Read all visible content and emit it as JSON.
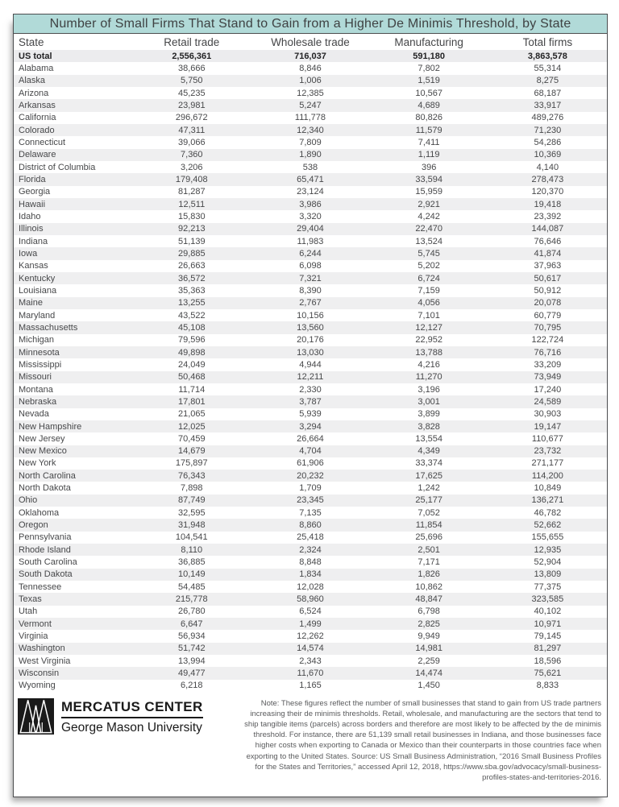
{
  "title": "Number of Small Firms That Stand to Gain from a Higher De Minimis Threshold, by State",
  "chart_data": {
    "type": "table",
    "title": "Number of Small Firms That Stand to Gain from a Higher De Minimis Threshold, by State",
    "columns": [
      "State",
      "Retail trade",
      "Wholesale trade",
      "Manufacturing",
      "Total firms"
    ],
    "rows": [
      [
        "US total",
        "2,556,361",
        "716,037",
        "591,180",
        "3,863,578"
      ],
      [
        "Alabama",
        "38,666",
        "8,846",
        "7,802",
        "55,314"
      ],
      [
        "Alaska",
        "5,750",
        "1,006",
        "1,519",
        "8,275"
      ],
      [
        "Arizona",
        "45,235",
        "12,385",
        "10,567",
        "68,187"
      ],
      [
        "Arkansas",
        "23,981",
        "5,247",
        "4,689",
        "33,917"
      ],
      [
        "California",
        "296,672",
        "111,778",
        "80,826",
        "489,276"
      ],
      [
        "Colorado",
        "47,311",
        "12,340",
        "11,579",
        "71,230"
      ],
      [
        "Connecticut",
        "39,066",
        "7,809",
        "7,411",
        "54,286"
      ],
      [
        "Delaware",
        "7,360",
        "1,890",
        "1,119",
        "10,369"
      ],
      [
        "District of Columbia",
        "3,206",
        "538",
        "396",
        "4,140"
      ],
      [
        "Florida",
        "179,408",
        "65,471",
        "33,594",
        "278,473"
      ],
      [
        "Georgia",
        "81,287",
        "23,124",
        "15,959",
        "120,370"
      ],
      [
        "Hawaii",
        "12,511",
        "3,986",
        "2,921",
        "19,418"
      ],
      [
        "Idaho",
        "15,830",
        "3,320",
        "4,242",
        "23,392"
      ],
      [
        "Illinois",
        "92,213",
        "29,404",
        "22,470",
        "144,087"
      ],
      [
        "Indiana",
        "51,139",
        "11,983",
        "13,524",
        "76,646"
      ],
      [
        "Iowa",
        "29,885",
        "6,244",
        "5,745",
        "41,874"
      ],
      [
        "Kansas",
        "26,663",
        "6,098",
        "5,202",
        "37,963"
      ],
      [
        "Kentucky",
        "36,572",
        "7,321",
        "6,724",
        "50,617"
      ],
      [
        "Louisiana",
        "35,363",
        "8,390",
        "7,159",
        "50,912"
      ],
      [
        "Maine",
        "13,255",
        "2,767",
        "4,056",
        "20,078"
      ],
      [
        "Maryland",
        "43,522",
        "10,156",
        "7,101",
        "60,779"
      ],
      [
        "Massachusetts",
        "45,108",
        "13,560",
        "12,127",
        "70,795"
      ],
      [
        "Michigan",
        "79,596",
        "20,176",
        "22,952",
        "122,724"
      ],
      [
        "Minnesota",
        "49,898",
        "13,030",
        "13,788",
        "76,716"
      ],
      [
        "Mississippi",
        "24,049",
        "4,944",
        "4,216",
        "33,209"
      ],
      [
        "Missouri",
        "50,468",
        "12,211",
        "11,270",
        "73,949"
      ],
      [
        "Montana",
        "11,714",
        "2,330",
        "3,196",
        "17,240"
      ],
      [
        "Nebraska",
        "17,801",
        "3,787",
        "3,001",
        "24,589"
      ],
      [
        "Nevada",
        "21,065",
        "5,939",
        "3,899",
        "30,903"
      ],
      [
        "New Hampshire",
        "12,025",
        "3,294",
        "3,828",
        "19,147"
      ],
      [
        "New Jersey",
        "70,459",
        "26,664",
        "13,554",
        "110,677"
      ],
      [
        "New Mexico",
        "14,679",
        "4,704",
        "4,349",
        "23,732"
      ],
      [
        "New York",
        "175,897",
        "61,906",
        "33,374",
        "271,177"
      ],
      [
        "North Carolina",
        "76,343",
        "20,232",
        "17,625",
        "114,200"
      ],
      [
        "North Dakota",
        "7,898",
        "1,709",
        "1,242",
        "10,849"
      ],
      [
        "Ohio",
        "87,749",
        "23,345",
        "25,177",
        "136,271"
      ],
      [
        "Oklahoma",
        "32,595",
        "7,135",
        "7,052",
        "46,782"
      ],
      [
        "Oregon",
        "31,948",
        "8,860",
        "11,854",
        "52,662"
      ],
      [
        "Pennsylvania",
        "104,541",
        "25,418",
        "25,696",
        "155,655"
      ],
      [
        "Rhode Island",
        "8,110",
        "2,324",
        "2,501",
        "12,935"
      ],
      [
        "South Carolina",
        "36,885",
        "8,848",
        "7,171",
        "52,904"
      ],
      [
        "South Dakota",
        "10,149",
        "1,834",
        "1,826",
        "13,809"
      ],
      [
        "Tennessee",
        "54,485",
        "12,028",
        "10,862",
        "77,375"
      ],
      [
        "Texas",
        "215,778",
        "58,960",
        "48,847",
        "323,585"
      ],
      [
        "Utah",
        "26,780",
        "6,524",
        "6,798",
        "40,102"
      ],
      [
        "Vermont",
        "6,647",
        "1,499",
        "2,825",
        "10,971"
      ],
      [
        "Virginia",
        "56,934",
        "12,262",
        "9,949",
        "79,145"
      ],
      [
        "Washington",
        "51,742",
        "14,574",
        "14,981",
        "81,297"
      ],
      [
        "West Virginia",
        "13,994",
        "2,343",
        "2,259",
        "18,596"
      ],
      [
        "Wisconsin",
        "49,477",
        "11,670",
        "14,474",
        "75,621"
      ],
      [
        "Wyoming",
        "6,218",
        "1,165",
        "1,450",
        "8,833"
      ]
    ]
  },
  "footer": {
    "brand": {
      "icon": "mercatus-mm-logo",
      "org": "MERCATUS CENTER",
      "university": "George Mason University"
    },
    "note": "Note: These figures reflect the number of small businesses that stand to gain from US trade partners increasing their de minimis thresholds. Retail, wholesale, and manufacturing are the sectors that tend to ship tangible items (parcels) across borders and therefore are most likely to be affected by the de minimis threshold. For instance, there are 51,139 small retail businesses in Indiana, and those businesses face higher costs when exporting to Canada or Mexico than their counterparts in those countries face when exporting to the United States. Source: US Small Business Administration, “2016 Small Business Profiles for the States and Territories,” accessed April 12, 2018, https://www.sba.gov/advocacy/small-business-profiles-states-and-territories-2016."
  },
  "colors": {
    "title_bg": "#b1dad8",
    "stripe": "#efeff0",
    "total_bg": "#ececee",
    "border": "#4c4d4f",
    "text": "#47484a",
    "note_text": "#595a5c"
  }
}
